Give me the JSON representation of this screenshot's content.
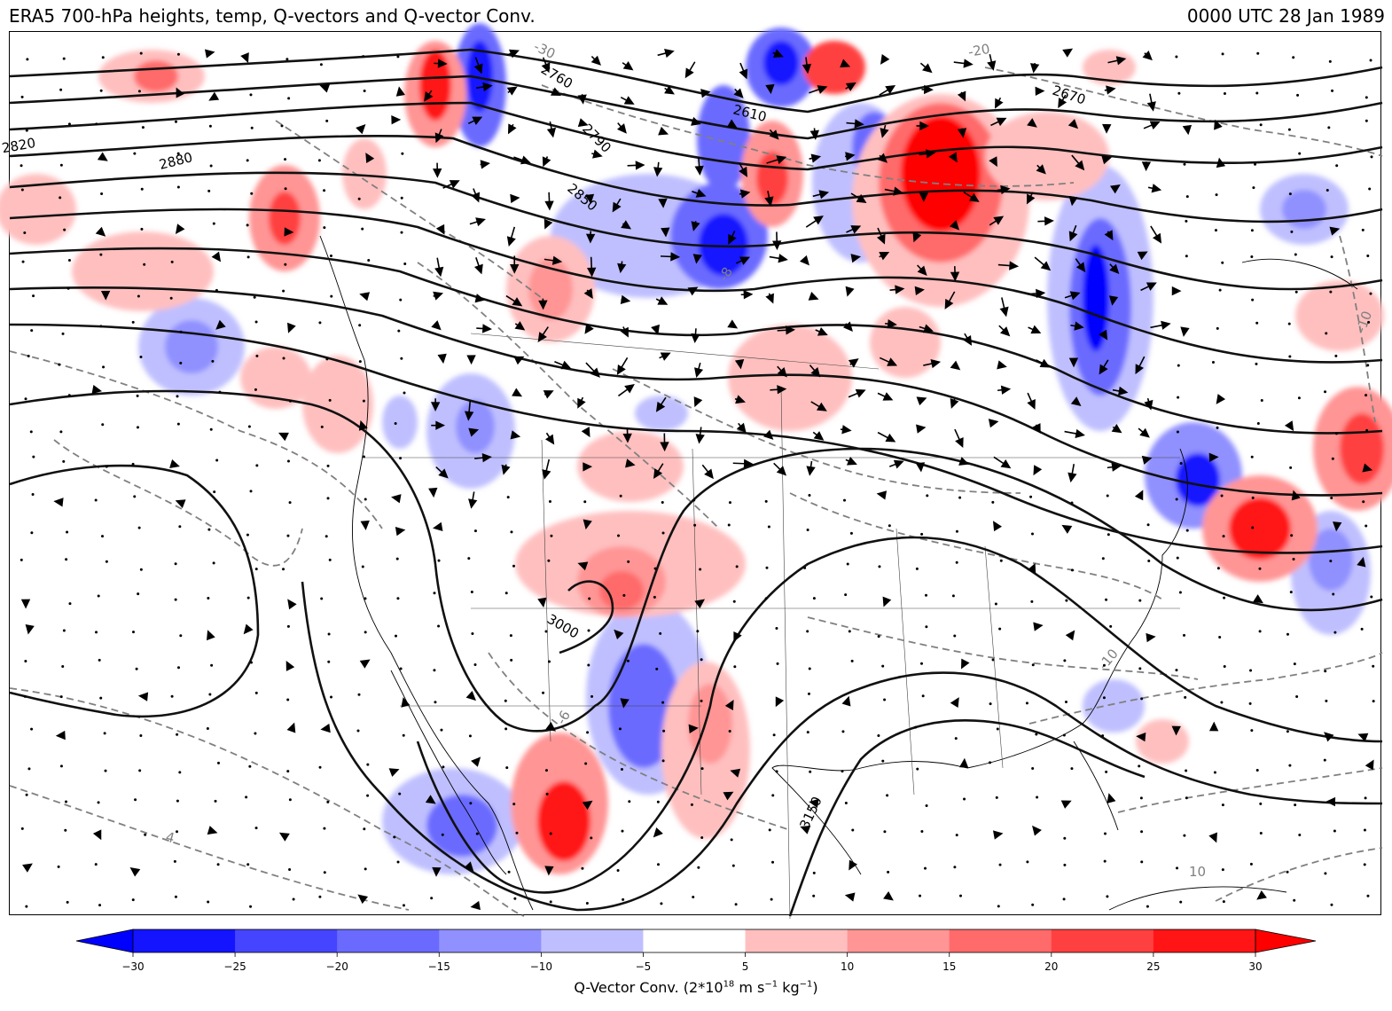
{
  "header": {
    "title_left": "ERA5 700-hPa heights, temp, Q-vectors and Q-vector Conv.",
    "title_right": "0000 UTC 28 Jan 1989"
  },
  "map": {
    "height_contour_labels": [
      "2610",
      "2670",
      "2760",
      "2790",
      "2820",
      "2850",
      "2880",
      "3000",
      "3150"
    ],
    "temperature_contour_labels": [
      "4",
      "-6",
      "-20",
      "-10",
      "-10",
      "-30",
      "-8",
      "10"
    ],
    "colors": {
      "height_contour": "#000000",
      "temperature_contour": "#808080",
      "positive_conv": "#ff0000",
      "negative_conv": "#0000ff"
    }
  },
  "colorbar": {
    "ticks": [
      "−30",
      "−25",
      "−20",
      "−15",
      "−10",
      "−5",
      "5",
      "10",
      "15",
      "20",
      "25",
      "30"
    ],
    "label_main": "Q-Vector Conv. (2*10",
    "label_exp1": "18",
    "label_mid": " m s",
    "label_exp2": "−1",
    "label_mid2": " kg",
    "label_exp3": "−1",
    "label_end": ")",
    "colors": [
      "#0000ff",
      "#1414ff",
      "#4545ff",
      "#6a6aff",
      "#9090ff",
      "#bfbfff",
      "#ffffff",
      "#ffbfbf",
      "#ff9595",
      "#ff6a6a",
      "#ff4040",
      "#ff1515",
      "#ff0000"
    ]
  }
}
